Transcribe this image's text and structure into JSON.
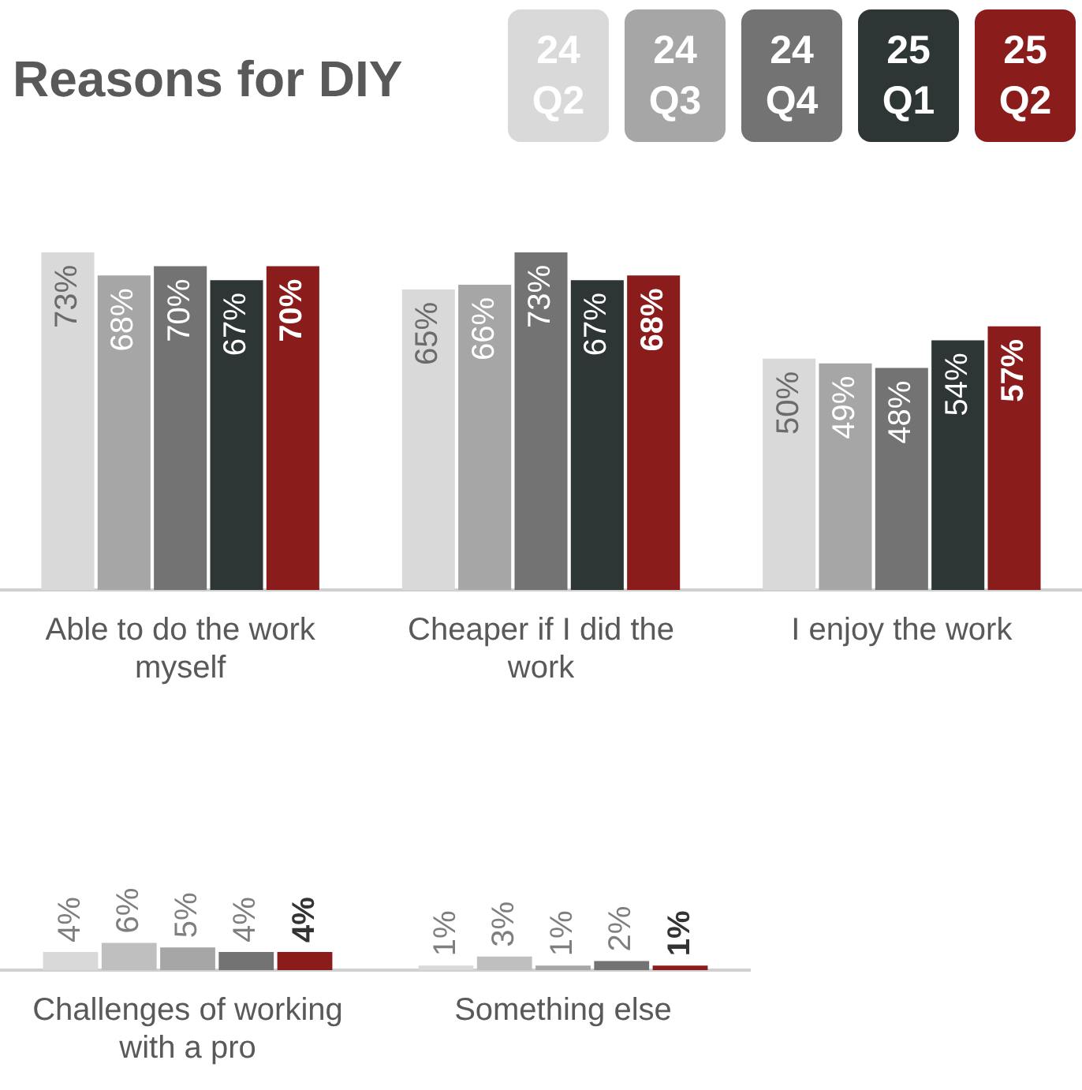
{
  "chart_data": [
    {
      "type": "bar",
      "title": "Reasons for DIY",
      "categories": [
        "Able to do the work myself",
        "Cheaper if I did the work",
        "I enjoy the work"
      ],
      "series": [
        {
          "name": "24 Q2",
          "color": "#d9d9d9",
          "values": [
            73,
            65,
            50
          ],
          "value_labels": [
            "73%",
            "65%",
            "50%"
          ]
        },
        {
          "name": "24 Q3",
          "color": "#a6a6a6",
          "values": [
            68,
            66,
            49
          ],
          "value_labels": [
            "68%",
            "66%",
            "49%"
          ]
        },
        {
          "name": "24 Q4",
          "color": "#737373",
          "values": [
            70,
            73,
            48
          ],
          "value_labels": [
            "70%",
            "73%",
            "48%"
          ]
        },
        {
          "name": "25 Q1",
          "color": "#2e3535",
          "values": [
            67,
            67,
            54
          ],
          "value_labels": [
            "67%",
            "67%",
            "54%"
          ]
        },
        {
          "name": "25 Q2",
          "color": "#8b1c1c",
          "values": [
            70,
            68,
            57
          ],
          "value_labels": [
            "70%",
            "68%",
            "57%"
          ]
        }
      ],
      "legend": "top right",
      "tick_labels": "x",
      "grid": false
    },
    {
      "type": "bar",
      "categories": [
        "Challenges of working with a pro",
        "Something else"
      ],
      "series": [
        {
          "color": "#d9d9d9",
          "values": [
            4,
            1
          ],
          "value_labels": [
            "4%",
            "1%"
          ]
        },
        {
          "color": "#bfbfbf",
          "values": [
            6,
            3
          ],
          "value_labels": [
            "6%",
            "3%"
          ]
        },
        {
          "color": "#a6a6a6",
          "values": [
            5,
            1
          ],
          "value_labels": [
            "5%",
            "1%"
          ]
        },
        {
          "color": "#737373",
          "values": [
            4,
            2
          ],
          "value_labels": [
            "4%",
            "2%"
          ]
        },
        {
          "color": "#8b1c1c",
          "values": [
            4,
            1
          ],
          "value_labels": [
            "4%",
            "1%"
          ]
        }
      ],
      "tick_labels": "x",
      "grid": false
    }
  ]
}
